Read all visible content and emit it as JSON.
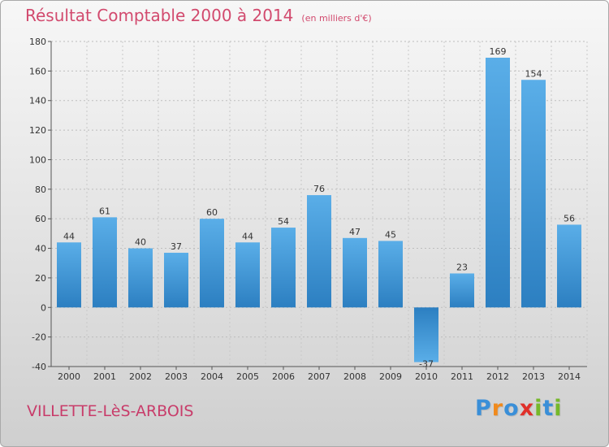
{
  "chart_data": {
    "type": "bar",
    "title": "Résultat Comptable 2000 à 2014",
    "subtitle": "(en milliers d'€)",
    "categories": [
      "2000",
      "2001",
      "2002",
      "2003",
      "2004",
      "2005",
      "2006",
      "2007",
      "2008",
      "2009",
      "2010",
      "2011",
      "2012",
      "2013",
      "2014"
    ],
    "values": [
      44,
      61,
      40,
      37,
      60,
      44,
      54,
      76,
      47,
      45,
      -37,
      23,
      169,
      154,
      56
    ],
    "ylim": [
      -40,
      180
    ],
    "yticks": [
      -40,
      -20,
      0,
      20,
      40,
      60,
      80,
      100,
      120,
      140,
      160,
      180
    ],
    "xlabel": "",
    "ylabel": "",
    "grid": true,
    "bar_color_light": "#5aaee8",
    "bar_color_dark": "#2c7fc1"
  },
  "footer": {
    "commune": "VILLETTE-LèS-ARBOIS",
    "logo_letters": [
      "P",
      "r",
      "o",
      "x",
      "i",
      "t",
      "i"
    ],
    "logo_colors": [
      "#3a8fd8",
      "#f08a1c",
      "#3a8fd8",
      "#e0302a",
      "#76b82a",
      "#3a8fd8",
      "#76b82a"
    ]
  }
}
